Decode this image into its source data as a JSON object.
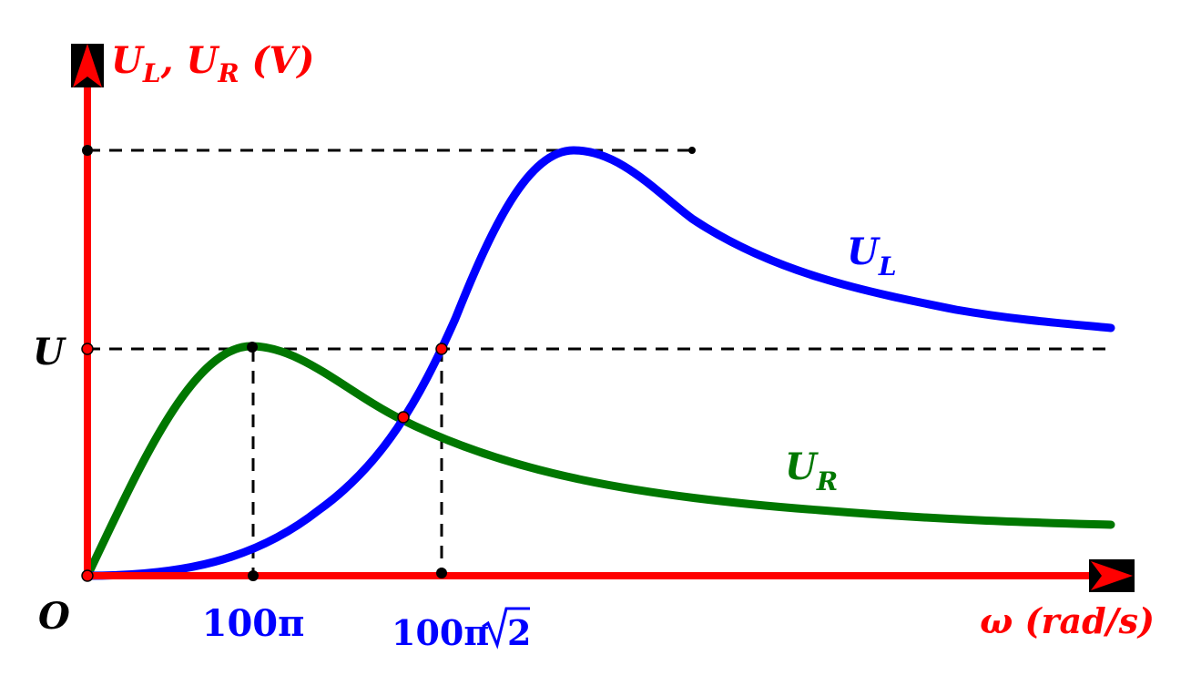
{
  "axes": {
    "y_label": {
      "main": "U",
      "sub1": "L",
      "sep": ", ",
      "main2": "U",
      "sub2": "R",
      "unit": " (V)"
    },
    "x_label": "ω (rad/s)",
    "origin_label": "O",
    "y_tick_label": "U",
    "x_tick_1": "100π",
    "x_tick_2_base": "100π",
    "x_tick_2_radicand": "2"
  },
  "curves": {
    "ul": {
      "main": "U",
      "sub": "L"
    },
    "ur": {
      "main": "U",
      "sub": "R"
    }
  },
  "colors": {
    "axis": "#ff0000",
    "ul": "#0000ff",
    "ur": "#007700",
    "dashed": "#000000",
    "tick_text": "#0000ff",
    "axis_text": "#ff0000",
    "point_red": "#ff0000",
    "point_black": "#000000"
  }
}
